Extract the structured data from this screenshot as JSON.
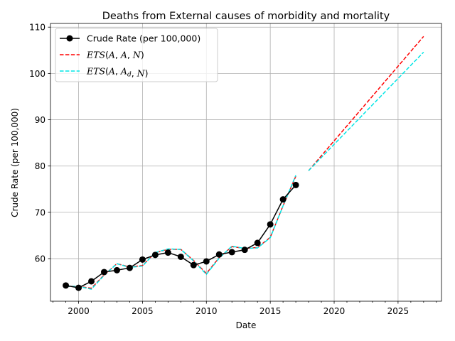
{
  "chart_data": {
    "type": "line",
    "title": "Deaths from External causes of morbidity and mortality",
    "xlabel": "Date",
    "ylabel": "Crude Rate (per 100,000)",
    "xlim": [
      1997.8,
      2028.4
    ],
    "ylim": [
      50.8,
      110.8
    ],
    "xticks": [
      2000,
      2005,
      2010,
      2015,
      2020,
      2025
    ],
    "yticks": [
      60,
      70,
      80,
      90,
      100,
      110
    ],
    "x_minor_step": 1,
    "grid": true,
    "legend_position": "top-left",
    "series": [
      {
        "name": "Crude Rate (per 100,000)",
        "color": "#000000",
        "style": "solid",
        "marker": "circle",
        "x": [
          1999,
          2000,
          2001,
          2002,
          2003,
          2004,
          2005,
          2006,
          2007,
          2008,
          2009,
          2010,
          2011,
          2012,
          2013,
          2014,
          2015,
          2016,
          2017
        ],
        "y": [
          54.2,
          53.7,
          55.1,
          57.1,
          57.5,
          58.0,
          59.8,
          60.8,
          61.3,
          60.4,
          58.6,
          59.4,
          60.9,
          61.4,
          61.9,
          63.4,
          67.4,
          72.8,
          75.9
        ]
      },
      {
        "name": "ETS(A,A,N)",
        "legend_math": {
          "base": "ETS",
          "args": [
            "A",
            "A",
            "N"
          ]
        },
        "color": "#ff0000",
        "style": "dashed",
        "fitted": {
          "x": [
            1999,
            2000,
            2001,
            2002,
            2003,
            2004,
            2005,
            2006,
            2007,
            2008,
            2009,
            2010,
            2011,
            2012,
            2013,
            2014,
            2015,
            2016,
            2017
          ],
          "y": [
            54.0,
            54.0,
            53.6,
            56.5,
            58.9,
            58.2,
            58.5,
            61.3,
            62.0,
            62.0,
            59.6,
            56.8,
            60.2,
            62.6,
            62.2,
            62.4,
            64.6,
            71.4,
            77.8
          ]
        },
        "forecast": {
          "x": [
            2018,
            2027
          ],
          "y": [
            79.0,
            108.0
          ]
        }
      },
      {
        "name": "ETS(A,A_d,N)",
        "legend_math": {
          "base": "ETS",
          "args": [
            "A",
            "A",
            "N"
          ],
          "subscript_index": 1,
          "subscript": "d"
        },
        "color": "#00e5e5",
        "style": "dashed",
        "fitted": {
          "x": [
            1999,
            2000,
            2001,
            2002,
            2003,
            2004,
            2005,
            2006,
            2007,
            2008,
            2009,
            2010,
            2011,
            2012,
            2013,
            2014,
            2015,
            2016,
            2017
          ],
          "y": [
            54.0,
            54.0,
            53.4,
            56.4,
            58.9,
            58.1,
            58.4,
            61.3,
            62.1,
            62.0,
            59.5,
            56.6,
            60.1,
            62.7,
            62.2,
            62.3,
            64.5,
            71.4,
            78.0
          ]
        },
        "forecast": {
          "x": [
            2018,
            2027
          ],
          "y": [
            79.0,
            104.6
          ]
        }
      }
    ]
  }
}
